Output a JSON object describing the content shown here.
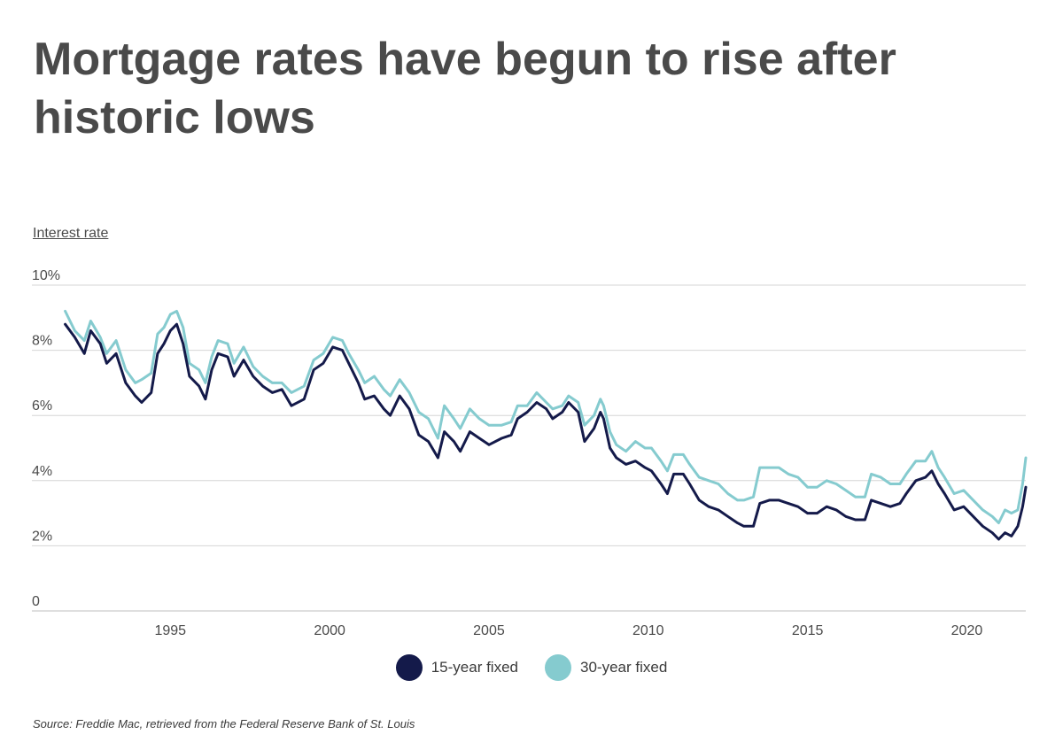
{
  "title": "Mortgage rates have begun to rise after historic lows",
  "source": "Source:  Freddie Mac, retrieved from the Federal Reserve Bank of St. Louis",
  "chart_data": {
    "type": "line",
    "title": "Mortgage rates have begun to rise after historic lows",
    "xlabel": "",
    "ylabel": "Interest rate",
    "xlim": [
      1991.6,
      2021.85
    ],
    "ylim": [
      0,
      10
    ],
    "y_ticks": [
      0,
      2,
      4,
      6,
      8,
      10
    ],
    "y_tick_labels": [
      "0",
      "2%",
      "4%",
      "6%",
      "8%",
      "10%"
    ],
    "x_ticks": [
      1995,
      2000,
      2005,
      2010,
      2015,
      2020
    ],
    "x_tick_labels": [
      "1995",
      "2000",
      "2005",
      "2010",
      "2015",
      "2020"
    ],
    "grid": "horizontal",
    "legend_position": "bottom-center",
    "series": [
      {
        "name": "15-year fixed",
        "color": "#141a4a",
        "points": [
          [
            1991.7,
            8.8
          ],
          [
            1992.0,
            8.4
          ],
          [
            1992.3,
            7.9
          ],
          [
            1992.5,
            8.6
          ],
          [
            1992.8,
            8.2
          ],
          [
            1993.0,
            7.6
          ],
          [
            1993.3,
            7.9
          ],
          [
            1993.6,
            7.0
          ],
          [
            1993.9,
            6.6
          ],
          [
            1994.1,
            6.4
          ],
          [
            1994.4,
            6.7
          ],
          [
            1994.6,
            7.9
          ],
          [
            1994.8,
            8.2
          ],
          [
            1995.0,
            8.6
          ],
          [
            1995.2,
            8.8
          ],
          [
            1995.4,
            8.2
          ],
          [
            1995.6,
            7.2
          ],
          [
            1995.9,
            6.9
          ],
          [
            1996.1,
            6.5
          ],
          [
            1996.3,
            7.4
          ],
          [
            1996.5,
            7.9
          ],
          [
            1996.8,
            7.8
          ],
          [
            1997.0,
            7.2
          ],
          [
            1997.3,
            7.7
          ],
          [
            1997.6,
            7.2
          ],
          [
            1997.9,
            6.9
          ],
          [
            1998.2,
            6.7
          ],
          [
            1998.5,
            6.8
          ],
          [
            1998.8,
            6.3
          ],
          [
            1999.2,
            6.5
          ],
          [
            1999.5,
            7.4
          ],
          [
            1999.8,
            7.6
          ],
          [
            2000.1,
            8.1
          ],
          [
            2000.4,
            8.0
          ],
          [
            2000.6,
            7.6
          ],
          [
            2000.9,
            7.0
          ],
          [
            2001.1,
            6.5
          ],
          [
            2001.4,
            6.6
          ],
          [
            2001.7,
            6.2
          ],
          [
            2001.9,
            6.0
          ],
          [
            2002.2,
            6.6
          ],
          [
            2002.5,
            6.2
          ],
          [
            2002.8,
            5.4
          ],
          [
            2003.1,
            5.2
          ],
          [
            2003.4,
            4.7
          ],
          [
            2003.6,
            5.5
          ],
          [
            2003.9,
            5.2
          ],
          [
            2004.1,
            4.9
          ],
          [
            2004.4,
            5.5
          ],
          [
            2004.7,
            5.3
          ],
          [
            2005.0,
            5.1
          ],
          [
            2005.4,
            5.3
          ],
          [
            2005.7,
            5.4
          ],
          [
            2005.9,
            5.9
          ],
          [
            2006.2,
            6.1
          ],
          [
            2006.5,
            6.4
          ],
          [
            2006.8,
            6.2
          ],
          [
            2007.0,
            5.9
          ],
          [
            2007.3,
            6.1
          ],
          [
            2007.5,
            6.4
          ],
          [
            2007.8,
            6.1
          ],
          [
            2008.0,
            5.2
          ],
          [
            2008.3,
            5.6
          ],
          [
            2008.5,
            6.1
          ],
          [
            2008.6,
            5.9
          ],
          [
            2008.8,
            5.0
          ],
          [
            2009.0,
            4.7
          ],
          [
            2009.3,
            4.5
          ],
          [
            2009.6,
            4.6
          ],
          [
            2009.9,
            4.4
          ],
          [
            2010.1,
            4.3
          ],
          [
            2010.4,
            3.9
          ],
          [
            2010.6,
            3.6
          ],
          [
            2010.8,
            4.2
          ],
          [
            2011.1,
            4.2
          ],
          [
            2011.3,
            3.9
          ],
          [
            2011.6,
            3.4
          ],
          [
            2011.9,
            3.2
          ],
          [
            2012.2,
            3.1
          ],
          [
            2012.5,
            2.9
          ],
          [
            2012.8,
            2.7
          ],
          [
            2013.0,
            2.6
          ],
          [
            2013.3,
            2.6
          ],
          [
            2013.5,
            3.3
          ],
          [
            2013.8,
            3.4
          ],
          [
            2014.1,
            3.4
          ],
          [
            2014.4,
            3.3
          ],
          [
            2014.7,
            3.2
          ],
          [
            2015.0,
            3.0
          ],
          [
            2015.3,
            3.0
          ],
          [
            2015.6,
            3.2
          ],
          [
            2015.9,
            3.1
          ],
          [
            2016.2,
            2.9
          ],
          [
            2016.5,
            2.8
          ],
          [
            2016.8,
            2.8
          ],
          [
            2017.0,
            3.4
          ],
          [
            2017.3,
            3.3
          ],
          [
            2017.6,
            3.2
          ],
          [
            2017.9,
            3.3
          ],
          [
            2018.1,
            3.6
          ],
          [
            2018.4,
            4.0
          ],
          [
            2018.7,
            4.1
          ],
          [
            2018.9,
            4.3
          ],
          [
            2019.1,
            3.9
          ],
          [
            2019.3,
            3.6
          ],
          [
            2019.6,
            3.1
          ],
          [
            2019.9,
            3.2
          ],
          [
            2020.2,
            2.9
          ],
          [
            2020.5,
            2.6
          ],
          [
            2020.8,
            2.4
          ],
          [
            2021.0,
            2.2
          ],
          [
            2021.2,
            2.4
          ],
          [
            2021.4,
            2.3
          ],
          [
            2021.6,
            2.6
          ],
          [
            2021.75,
            3.2
          ],
          [
            2021.85,
            3.8
          ]
        ]
      },
      {
        "name": "30-year fixed",
        "color": "#85cbcf",
        "points": [
          [
            1991.7,
            9.2
          ],
          [
            1992.0,
            8.6
          ],
          [
            1992.3,
            8.3
          ],
          [
            1992.5,
            8.9
          ],
          [
            1992.8,
            8.4
          ],
          [
            1993.0,
            7.9
          ],
          [
            1993.3,
            8.3
          ],
          [
            1993.6,
            7.4
          ],
          [
            1993.9,
            7.0
          ],
          [
            1994.1,
            7.1
          ],
          [
            1994.4,
            7.3
          ],
          [
            1994.6,
            8.5
          ],
          [
            1994.8,
            8.7
          ],
          [
            1995.0,
            9.1
          ],
          [
            1995.2,
            9.2
          ],
          [
            1995.4,
            8.7
          ],
          [
            1995.6,
            7.6
          ],
          [
            1995.9,
            7.4
          ],
          [
            1996.1,
            7.0
          ],
          [
            1996.3,
            7.8
          ],
          [
            1996.5,
            8.3
          ],
          [
            1996.8,
            8.2
          ],
          [
            1997.0,
            7.6
          ],
          [
            1997.3,
            8.1
          ],
          [
            1997.6,
            7.5
          ],
          [
            1997.9,
            7.2
          ],
          [
            1998.2,
            7.0
          ],
          [
            1998.5,
            7.0
          ],
          [
            1998.8,
            6.7
          ],
          [
            1999.2,
            6.9
          ],
          [
            1999.5,
            7.7
          ],
          [
            1999.8,
            7.9
          ],
          [
            2000.1,
            8.4
          ],
          [
            2000.4,
            8.3
          ],
          [
            2000.6,
            7.9
          ],
          [
            2000.9,
            7.4
          ],
          [
            2001.1,
            7.0
          ],
          [
            2001.4,
            7.2
          ],
          [
            2001.7,
            6.8
          ],
          [
            2001.9,
            6.6
          ],
          [
            2002.2,
            7.1
          ],
          [
            2002.5,
            6.7
          ],
          [
            2002.8,
            6.1
          ],
          [
            2003.1,
            5.9
          ],
          [
            2003.4,
            5.3
          ],
          [
            2003.6,
            6.3
          ],
          [
            2003.9,
            5.9
          ],
          [
            2004.1,
            5.6
          ],
          [
            2004.4,
            6.2
          ],
          [
            2004.7,
            5.9
          ],
          [
            2005.0,
            5.7
          ],
          [
            2005.4,
            5.7
          ],
          [
            2005.7,
            5.8
          ],
          [
            2005.9,
            6.3
          ],
          [
            2006.2,
            6.3
          ],
          [
            2006.5,
            6.7
          ],
          [
            2006.8,
            6.4
          ],
          [
            2007.0,
            6.2
          ],
          [
            2007.3,
            6.3
          ],
          [
            2007.5,
            6.6
          ],
          [
            2007.8,
            6.4
          ],
          [
            2008.0,
            5.7
          ],
          [
            2008.3,
            6.0
          ],
          [
            2008.5,
            6.5
          ],
          [
            2008.6,
            6.3
          ],
          [
            2008.8,
            5.5
          ],
          [
            2009.0,
            5.1
          ],
          [
            2009.3,
            4.9
          ],
          [
            2009.6,
            5.2
          ],
          [
            2009.9,
            5.0
          ],
          [
            2010.1,
            5.0
          ],
          [
            2010.4,
            4.6
          ],
          [
            2010.6,
            4.3
          ],
          [
            2010.8,
            4.8
          ],
          [
            2011.1,
            4.8
          ],
          [
            2011.3,
            4.5
          ],
          [
            2011.6,
            4.1
          ],
          [
            2011.9,
            4.0
          ],
          [
            2012.2,
            3.9
          ],
          [
            2012.5,
            3.6
          ],
          [
            2012.8,
            3.4
          ],
          [
            2013.0,
            3.4
          ],
          [
            2013.3,
            3.5
          ],
          [
            2013.5,
            4.4
          ],
          [
            2013.8,
            4.4
          ],
          [
            2014.1,
            4.4
          ],
          [
            2014.4,
            4.2
          ],
          [
            2014.7,
            4.1
          ],
          [
            2015.0,
            3.8
          ],
          [
            2015.3,
            3.8
          ],
          [
            2015.6,
            4.0
          ],
          [
            2015.9,
            3.9
          ],
          [
            2016.2,
            3.7
          ],
          [
            2016.5,
            3.5
          ],
          [
            2016.8,
            3.5
          ],
          [
            2017.0,
            4.2
          ],
          [
            2017.3,
            4.1
          ],
          [
            2017.6,
            3.9
          ],
          [
            2017.9,
            3.9
          ],
          [
            2018.1,
            4.2
          ],
          [
            2018.4,
            4.6
          ],
          [
            2018.7,
            4.6
          ],
          [
            2018.9,
            4.9
          ],
          [
            2019.1,
            4.4
          ],
          [
            2019.3,
            4.1
          ],
          [
            2019.6,
            3.6
          ],
          [
            2019.9,
            3.7
          ],
          [
            2020.2,
            3.4
          ],
          [
            2020.5,
            3.1
          ],
          [
            2020.8,
            2.9
          ],
          [
            2021.0,
            2.7
          ],
          [
            2021.2,
            3.1
          ],
          [
            2021.4,
            3.0
          ],
          [
            2021.6,
            3.1
          ],
          [
            2021.75,
            3.9
          ],
          [
            2021.85,
            4.7
          ]
        ]
      }
    ]
  }
}
